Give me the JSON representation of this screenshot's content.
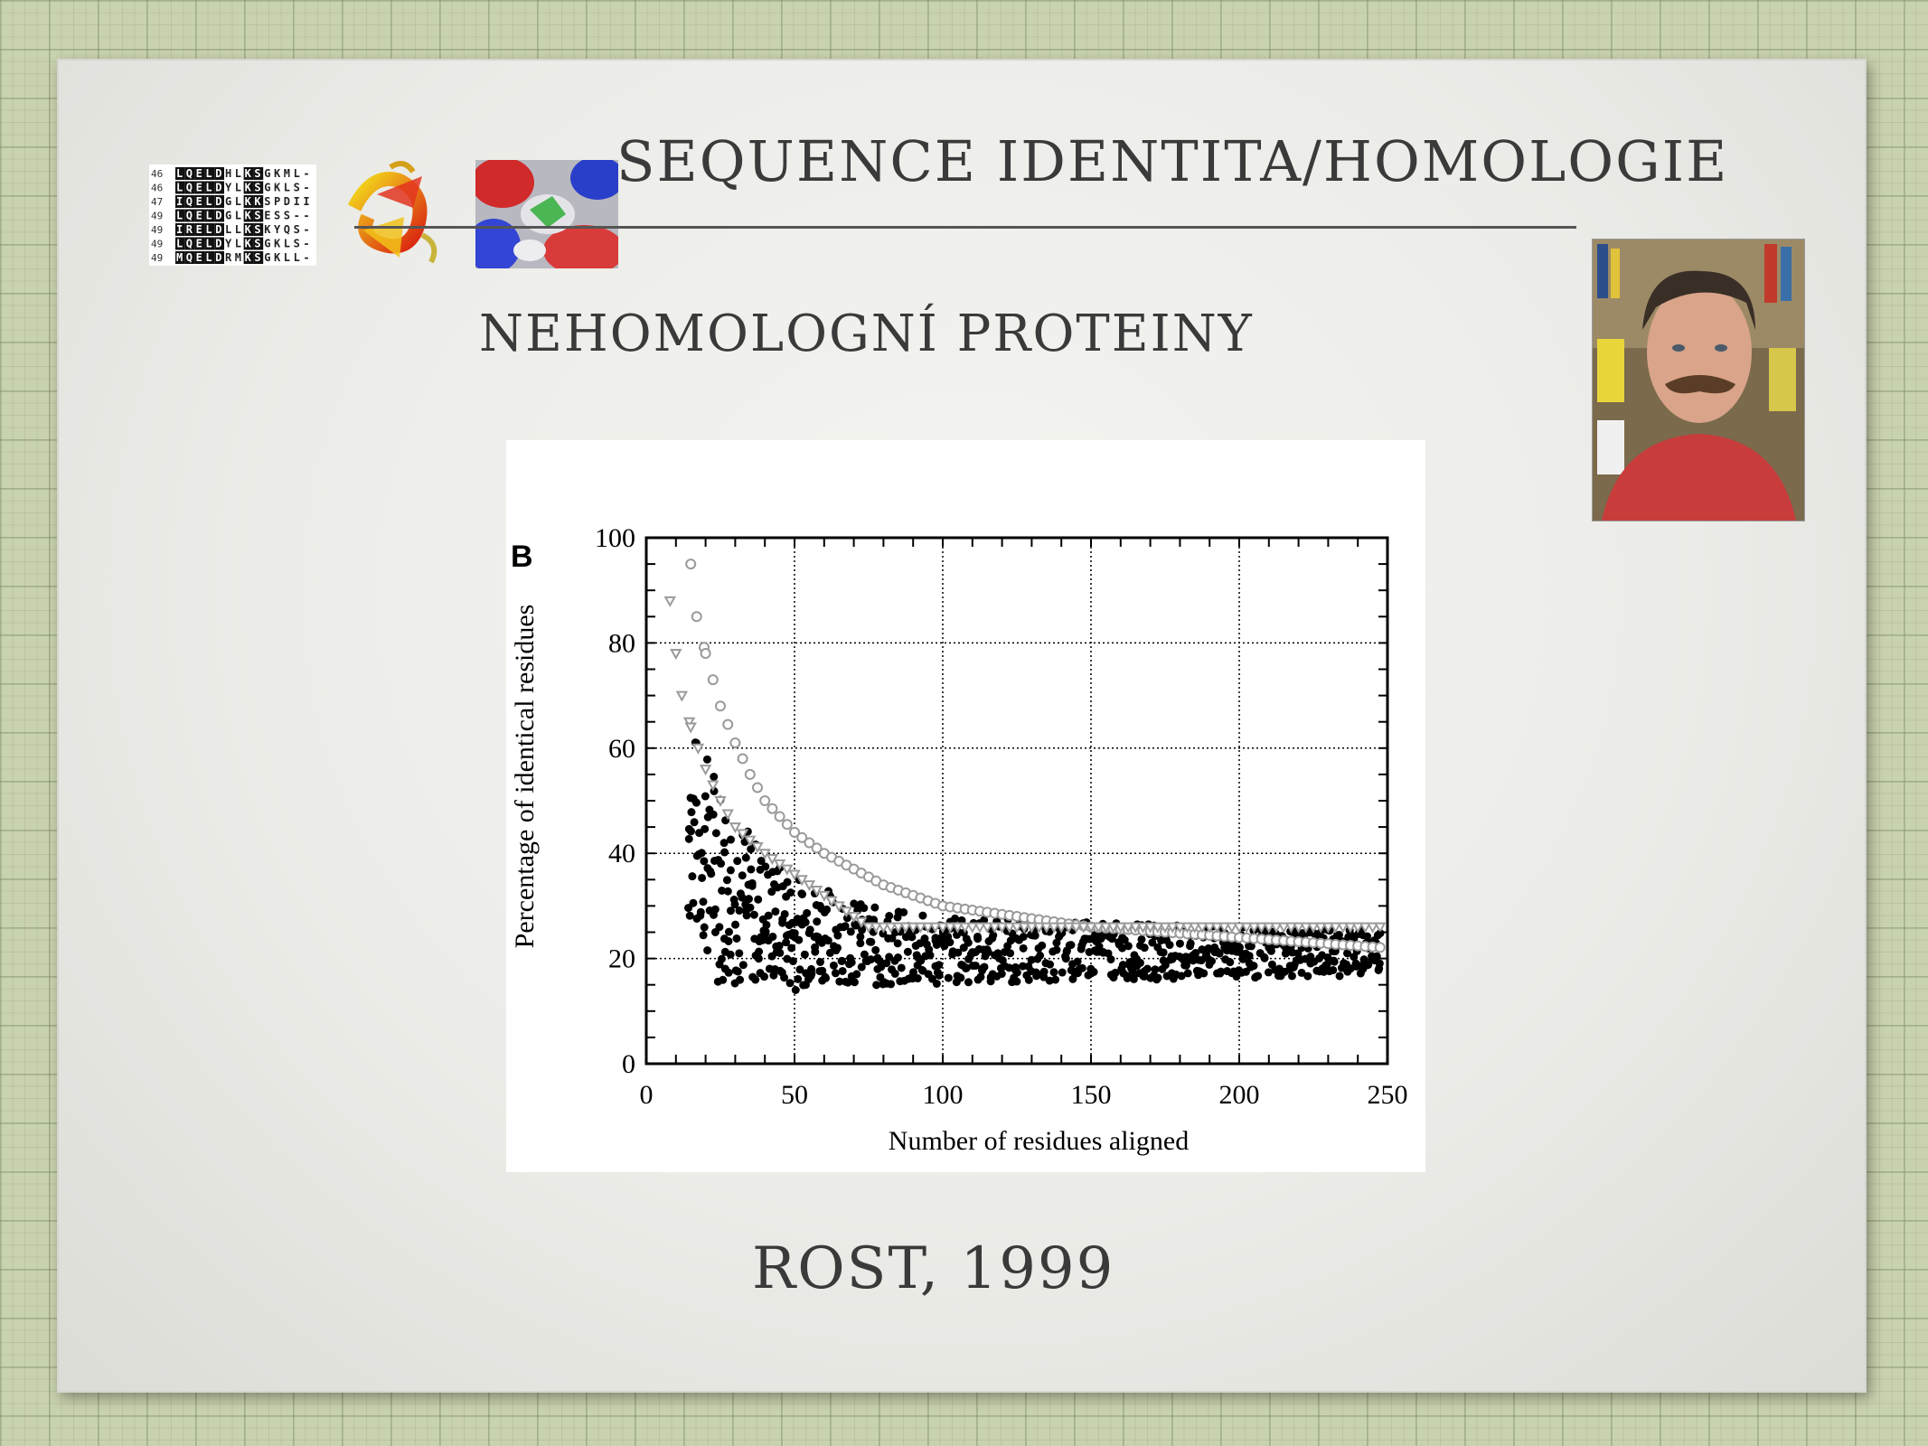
{
  "slide": {
    "title": "SEQUENCE IDENTITA/HOMOLOGIE",
    "subtitle": "NEHOMOLOGNÍ  PROTEINY",
    "citation": "ROST, 1999"
  },
  "logos": {
    "alignment_rows": [
      {
        "num": "46",
        "seq": "LQELDHLKSGKML-"
      },
      {
        "num": "46",
        "seq": "LQELDYLKSGKLS-"
      },
      {
        "num": "47",
        "seq": "IQELDGLKKSPDII"
      },
      {
        "num": "49",
        "seq": "LQELDGLKSESS--"
      },
      {
        "num": "49",
        "seq": "IRELDLLKSKYQS-"
      },
      {
        "num": "49",
        "seq": "LQELDYLKSGKLS-"
      },
      {
        "num": "49",
        "seq": "MQELDRMKSGKLL-"
      }
    ]
  },
  "chart_data": {
    "type": "scatter",
    "panel_label": "B",
    "xlabel": "Number of residues aligned",
    "ylabel": "Percentage of identical residues",
    "xlim": [
      0,
      250
    ],
    "ylim": [
      0,
      100
    ],
    "xticks": [
      "0",
      "50",
      "100",
      "150",
      "200",
      "250"
    ],
    "yticks": [
      "0",
      "20",
      "40",
      "60",
      "80",
      "100"
    ],
    "grid": true,
    "series": [
      {
        "style": "filled black dots",
        "color": "#000000",
        "lower_envelope": [
          [
            40,
            15
          ],
          [
            50,
            14
          ],
          [
            60,
            16
          ],
          [
            80,
            14
          ],
          [
            100,
            15
          ],
          [
            150,
            16
          ],
          [
            200,
            16
          ],
          [
            250,
            17
          ]
        ],
        "upper_envelope": [
          [
            14,
            65
          ],
          [
            20,
            60
          ],
          [
            30,
            48
          ],
          [
            40,
            40
          ],
          [
            50,
            36
          ],
          [
            75,
            30
          ],
          [
            100,
            28
          ],
          [
            150,
            27
          ],
          [
            200,
            26
          ],
          [
            250,
            26
          ]
        ]
      },
      {
        "style": "open grey circles",
        "color": "#9a9a9a",
        "points": [
          [
            15,
            95
          ],
          [
            17,
            85
          ],
          [
            20,
            78
          ],
          [
            25,
            68
          ],
          [
            30,
            61
          ],
          [
            35,
            55
          ],
          [
            40,
            50
          ],
          [
            50,
            44
          ],
          [
            60,
            40
          ],
          [
            70,
            37
          ],
          [
            80,
            34
          ],
          [
            90,
            32
          ],
          [
            100,
            30
          ],
          [
            125,
            28
          ],
          [
            150,
            26
          ],
          [
            175,
            25
          ],
          [
            200,
            24
          ],
          [
            225,
            23
          ],
          [
            250,
            22
          ]
        ]
      },
      {
        "style": "open grey triangles",
        "color": "#9a9a9a",
        "points": [
          [
            8,
            88
          ],
          [
            10,
            78
          ],
          [
            12,
            70
          ],
          [
            15,
            64
          ],
          [
            20,
            56
          ],
          [
            25,
            50
          ],
          [
            30,
            45
          ],
          [
            40,
            40
          ],
          [
            50,
            36
          ],
          [
            60,
            32
          ],
          [
            70,
            28
          ],
          [
            75,
            26
          ],
          [
            100,
            26
          ],
          [
            150,
            26
          ],
          [
            200,
            26
          ],
          [
            250,
            26
          ]
        ]
      }
    ]
  }
}
